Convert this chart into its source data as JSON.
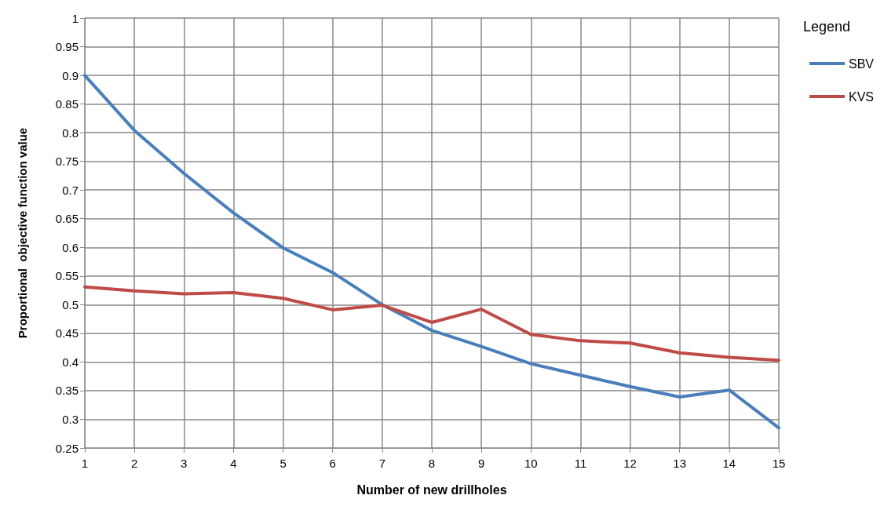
{
  "chart_data": {
    "type": "line",
    "xlabel": "Number of new drillholes",
    "ylabel": "Proportional  objective function value",
    "legend_title": "Legend",
    "x": [
      1,
      2,
      3,
      4,
      5,
      6,
      7,
      8,
      9,
      10,
      11,
      12,
      13,
      14,
      15
    ],
    "series": [
      {
        "name": "SBV",
        "color": "#4a7ebb",
        "values": [
          0.9,
          0.804,
          0.729,
          0.66,
          0.599,
          0.556,
          0.5,
          0.455,
          0.427,
          0.397,
          0.377,
          0.357,
          0.339,
          0.351,
          0.285
        ]
      },
      {
        "name": "KVS",
        "color": "#be4b48",
        "values": [
          0.531,
          0.524,
          0.519,
          0.521,
          0.511,
          0.491,
          0.499,
          0.469,
          0.492,
          0.448,
          0.437,
          0.433,
          0.416,
          0.408,
          0.403
        ]
      }
    ],
    "xlim": [
      1,
      15
    ],
    "xticks": [
      1,
      2,
      3,
      4,
      5,
      6,
      7,
      8,
      9,
      10,
      11,
      12,
      13,
      14,
      15
    ],
    "ylim": [
      0.25,
      1
    ],
    "yticks": [
      0.25,
      0.3,
      0.35,
      0.4,
      0.45,
      0.5,
      0.55,
      0.6,
      0.65,
      0.7,
      0.75,
      0.8,
      0.85,
      0.9,
      0.95,
      1
    ],
    "grid": true,
    "legend": "right",
    "marker": "none",
    "line_style": "solid"
  }
}
